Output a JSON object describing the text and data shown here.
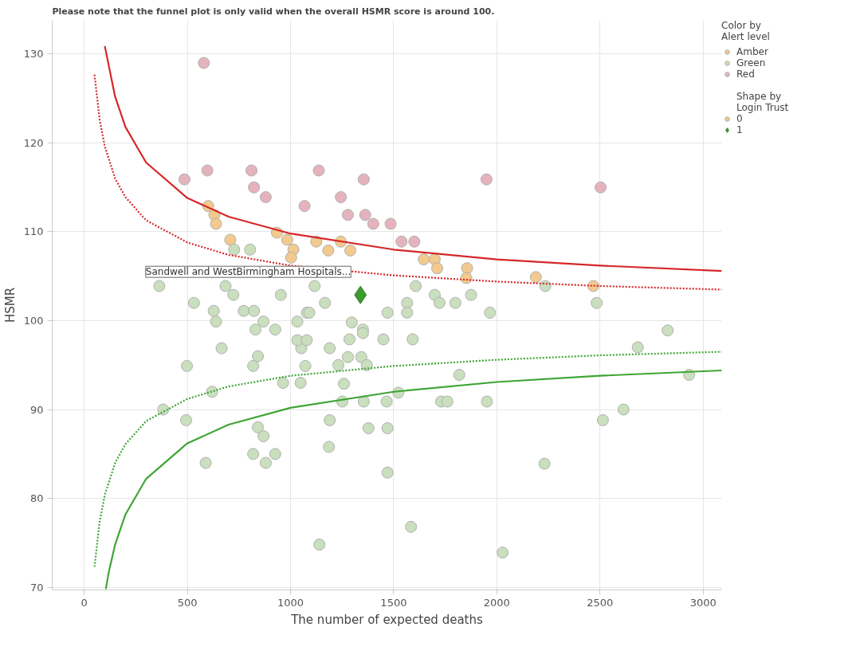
{
  "chart_data": {
    "type": "scatter",
    "title": "Please note that the funnel plot is only valid when the overall HSMR score is around 100.",
    "xlabel": "The number of expected deaths",
    "ylabel": "HSMR",
    "legend_title": "Color by\nAlert level",
    "xlim": [
      -155,
      3090
    ],
    "ylim": [
      69.7,
      133.8
    ],
    "xticks": [
      0,
      500,
      1000,
      1500,
      2000,
      2500,
      3000
    ],
    "yticks": [
      70,
      80,
      90,
      100,
      110,
      120,
      130
    ],
    "grid": true,
    "legend": "right",
    "series": [
      {
        "name": "Amber",
        "color": "#f2c98e",
        "marker": "circle",
        "x": [
          601,
          631,
          639,
          708,
          934,
          984,
          1014,
          1003,
          1125,
          1183,
          1244,
          1290,
          1646,
          1699,
          1711,
          1856,
          1852,
          2189,
          2468
        ],
        "values": [
          112.9,
          111.9,
          110.9,
          109.1,
          109.9,
          109.1,
          108.0,
          107.1,
          108.9,
          107.9,
          108.9,
          107.9,
          106.9,
          106.9,
          105.9,
          105.9,
          104.8,
          104.9,
          103.9
        ]
      },
      {
        "name": "Green",
        "color": "#c9dfbd",
        "marker": "circle",
        "x": [
          804,
          727,
          364,
          685,
          723,
          953,
          532,
          628,
          639,
          773,
          823,
          869,
          830,
          926,
          1033,
          1079,
          1117,
          1607,
          1699,
          1722,
          1799,
          1875,
          1565,
          1565,
          1470,
          1967,
          1167,
          1091,
          1297,
          1351,
          2235,
          666,
          498,
          842,
          819,
          383,
          494,
          620,
          842,
          869,
          819,
          926,
          880,
          589,
          964,
          1049,
          1052,
          1033,
          1079,
          1072,
          1190,
          1286,
          1351,
          1450,
          1592,
          1278,
          1343,
          1232,
          1370,
          1259,
          1818,
          1523,
          1251,
          1355,
          1466,
          1730,
          1760,
          1952,
          2932,
          2514,
          2614,
          2683,
          2828,
          1190,
          1378,
          1470,
          1186,
          1470,
          2231,
          1584,
          1140,
          2028,
          2484
        ],
        "values": [
          108.0,
          108.0,
          103.9,
          103.9,
          102.9,
          102.9,
          102.0,
          101.1,
          99.9,
          101.1,
          101.1,
          99.9,
          99.0,
          99.0,
          99.9,
          100.9,
          103.9,
          103.9,
          102.9,
          102.0,
          102.0,
          102.9,
          102.0,
          100.9,
          100.9,
          100.9,
          102.0,
          100.9,
          99.8,
          99.0,
          103.9,
          96.9,
          94.9,
          96.0,
          94.9,
          90.0,
          88.8,
          92.0,
          88.0,
          87.0,
          85.0,
          85.0,
          84.0,
          84.0,
          93.0,
          93.0,
          96.9,
          97.8,
          97.8,
          94.9,
          96.9,
          97.9,
          98.6,
          97.9,
          97.9,
          95.9,
          95.9,
          95.0,
          95.0,
          92.9,
          93.9,
          91.9,
          90.9,
          90.9,
          90.9,
          90.9,
          90.9,
          90.9,
          93.9,
          88.8,
          90.0,
          97.0,
          98.9,
          88.8,
          87.9,
          87.9,
          85.8,
          82.9,
          83.9,
          76.8,
          74.8,
          73.9,
          102.0
        ]
      },
      {
        "name": "Red",
        "color": "#e5b3bd",
        "marker": "circle",
        "x": [
          580,
          486,
          597,
          811,
          823,
          880,
          1068,
          1137,
          1355,
          1244,
          1278,
          1362,
          1401,
          1485,
          1538,
          1600,
          1950,
          2503
        ],
        "values": [
          129.0,
          115.9,
          116.9,
          116.9,
          115.0,
          113.9,
          112.9,
          116.9,
          115.9,
          113.9,
          111.9,
          111.9,
          110.9,
          110.9,
          108.9,
          108.9,
          115.9,
          115.0
        ]
      },
      {
        "name": "1",
        "color": "#3c9b2c",
        "marker": "diamond",
        "x": [
          1339
        ],
        "values": [
          102.9
        ]
      },
      {
        "type": "line",
        "color": "#d62728",
        "line_style": "solid",
        "marker": "none",
        "x": [
          100,
          150,
          200,
          300,
          500,
          700,
          1000,
          1500,
          2000,
          2500,
          3090
        ],
        "values": [
          130.9,
          125.2,
          121.8,
          117.8,
          113.8,
          111.7,
          109.8,
          108.0,
          106.9,
          106.2,
          105.6
        ]
      },
      {
        "type": "line",
        "color": "#d62728",
        "line_style": "dotted",
        "marker": "none",
        "x": [
          50,
          75,
          100,
          150,
          200,
          300,
          500,
          700,
          1000,
          1500,
          2000,
          2500,
          3090
        ],
        "values": [
          127.7,
          122.6,
          119.6,
          116.0,
          113.9,
          111.3,
          108.8,
          107.4,
          106.2,
          105.1,
          104.4,
          103.9,
          103.5
        ]
      },
      {
        "type": "line",
        "color": "#3fa535",
        "line_style": "solid",
        "marker": "none",
        "x": [
          105,
          120,
          150,
          200,
          300,
          500,
          700,
          1000,
          1500,
          2000,
          2500,
          3090
        ],
        "values": [
          69.8,
          71.8,
          74.8,
          78.2,
          82.2,
          86.2,
          88.3,
          90.2,
          92.0,
          93.1,
          93.8,
          94.4
        ]
      },
      {
        "type": "line",
        "color": "#3fa535",
        "line_style": "dotted",
        "marker": "none",
        "x": [
          50,
          75,
          100,
          150,
          200,
          300,
          500,
          700,
          1000,
          1500,
          2000,
          2500,
          3090
        ],
        "values": [
          72.3,
          77.4,
          80.4,
          84.0,
          86.1,
          88.7,
          91.2,
          92.6,
          93.8,
          94.9,
          95.6,
          96.1,
          96.5
        ]
      }
    ],
    "annotations": [
      {
        "text": "Sandwell and WestBirmingham Hospitals...",
        "x": 1339,
        "y": 102.9
      },
      "Shape by\nLogin Trust",
      "0"
    ]
  }
}
